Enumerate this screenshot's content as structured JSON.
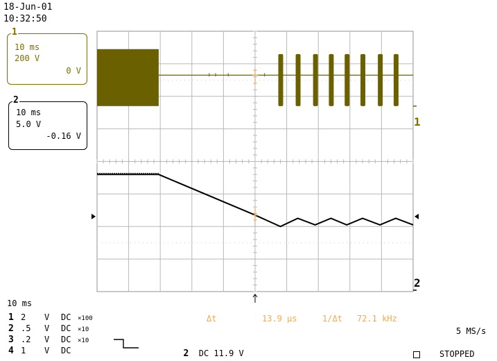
{
  "header": {
    "date": "18-Jun-01",
    "time": "10:32:50"
  },
  "channel1_box": {
    "number": "1",
    "time_div": "10 ms",
    "volt_div": "200 V",
    "offset": "0 V"
  },
  "channel2_box": {
    "number": "2",
    "time_div": "10 ms",
    "volt_div": "5.0 V",
    "offset": "-0.16 V"
  },
  "timebase": "10 ms",
  "trace_labels": {
    "ch1": "1",
    "ch2": "2"
  },
  "channels": [
    {
      "num": "1",
      "volts": "2",
      "unit": "V",
      "coupling": "DC",
      "probe": "×100"
    },
    {
      "num": "2",
      "volts": ".5",
      "unit": "V",
      "coupling": "DC",
      "probe": "×10"
    },
    {
      "num": "3",
      "volts": ".2",
      "unit": "V",
      "coupling": "DC",
      "probe": "×10"
    },
    {
      "num": "4",
      "volts": "1",
      "unit": "V",
      "coupling": "DC",
      "probe": ""
    }
  ],
  "trigger": {
    "channel": "2",
    "coupling": "DC",
    "level": "11.9 V"
  },
  "cursor": {
    "delta_t_label": "Δt",
    "delta_t_value": "13.9 μs",
    "inv_label": "1/Δt",
    "inv_value": "72.1 kHz"
  },
  "sample_rate": "5 MS/s",
  "status": "STOPPED",
  "colors": {
    "ch1": "#6b6000",
    "ch2": "#000000",
    "grid": "#b8b8b8",
    "cursor": "#f0a850"
  },
  "chart_data": {
    "type": "line",
    "grid": {
      "h_divisions": 10,
      "v_divisions": 8
    },
    "x_unit_per_div": "10 ms",
    "series": [
      {
        "name": "1",
        "description_volts_per_div": "200 V",
        "segments": [
          {
            "type": "burst",
            "x_start_div": 0.0,
            "x_end_div": 1.95
          },
          {
            "type": "flat",
            "x_start_div": 1.95,
            "x_end_div": 5.8
          },
          {
            "type": "pulses",
            "x_positions_div": [
              5.8,
              6.35,
              6.9,
              7.4,
              7.9,
              8.4,
              8.95,
              9.45
            ]
          }
        ]
      },
      {
        "name": "2",
        "volts_per_div": "5.0 V",
        "points_div": [
          [
            0,
            3.6
          ],
          [
            1.95,
            3.6
          ],
          [
            5.0,
            2.35
          ],
          [
            5.8,
            2.0
          ],
          [
            6.35,
            2.25
          ],
          [
            6.9,
            2.05
          ],
          [
            7.4,
            2.25
          ],
          [
            7.9,
            2.05
          ],
          [
            8.4,
            2.25
          ],
          [
            8.95,
            2.05
          ],
          [
            9.45,
            2.25
          ],
          [
            10,
            2.05
          ]
        ]
      }
    ],
    "cursor_x_div": 5.0
  }
}
